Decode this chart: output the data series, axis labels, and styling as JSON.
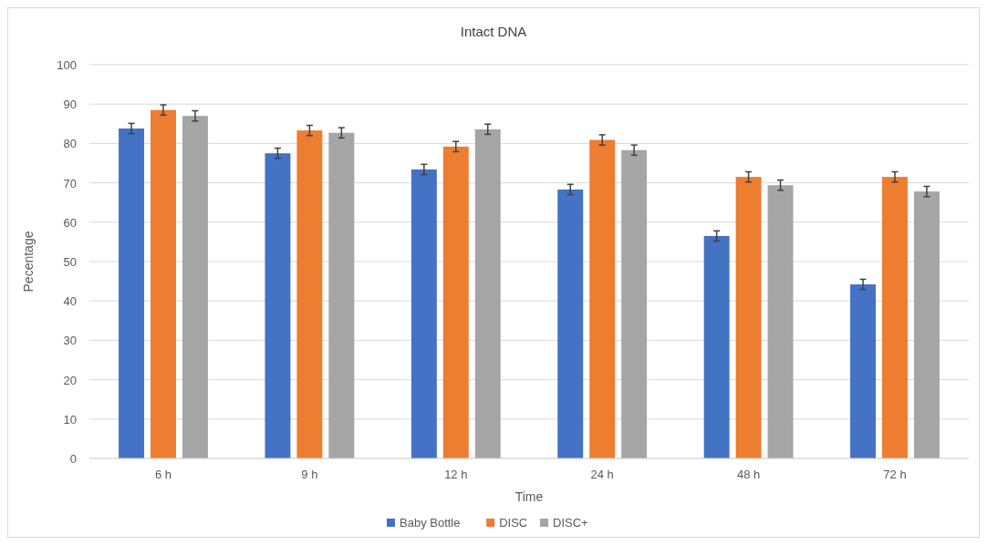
{
  "chart_data": {
    "type": "bar",
    "title": "Intact DNA",
    "xlabel": "Time",
    "ylabel": "Pecentage",
    "categories": [
      "6 h",
      "9 h",
      "12 h",
      "24 h",
      "48 h",
      "72 h"
    ],
    "series": [
      {
        "name": "Baby Bottle",
        "color": "#4472c4",
        "values": [
          83.8,
          77.5,
          73.4,
          68.3,
          56.5,
          44.2
        ],
        "errors": [
          1.3,
          1.3,
          1.3,
          1.3,
          1.3,
          1.3
        ]
      },
      {
        "name": "DISC",
        "color": "#ed7d31",
        "values": [
          88.5,
          83.3,
          79.2,
          80.9,
          71.5,
          71.5
        ],
        "errors": [
          1.3,
          1.3,
          1.3,
          1.3,
          1.3,
          1.3
        ]
      },
      {
        "name": "DISC+",
        "color": "#a5a5a5",
        "values": [
          87.0,
          82.7,
          83.6,
          78.3,
          69.4,
          67.8
        ],
        "errors": [
          1.3,
          1.3,
          1.3,
          1.3,
          1.3,
          1.3
        ]
      }
    ],
    "ylim": [
      0,
      100
    ],
    "yticks": [
      0,
      10,
      20,
      30,
      40,
      50,
      60,
      70,
      80,
      90,
      100
    ],
    "grid": "y",
    "legend": "bottom"
  }
}
